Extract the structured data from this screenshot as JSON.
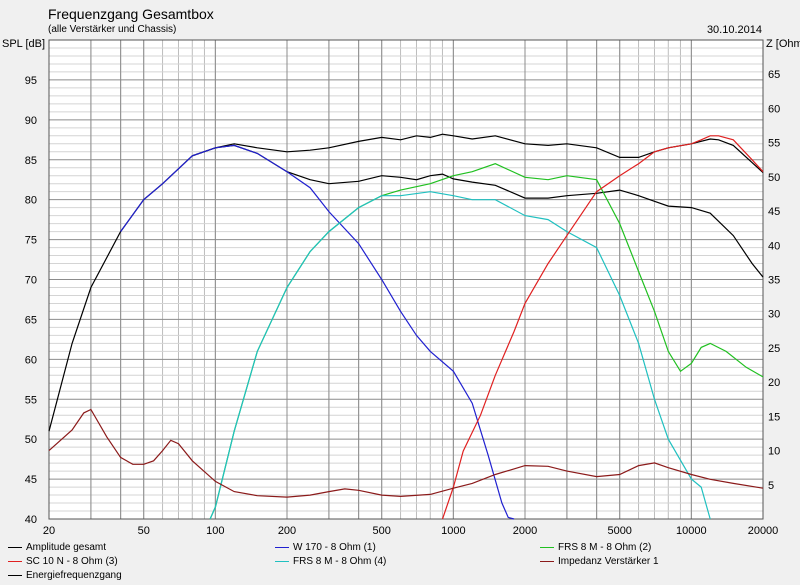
{
  "header": {
    "title": "Frequenzgang Gesamtbox",
    "subtitle": "(alle Verstärker und Chassis)",
    "date": "30.10.2014",
    "ylabel_left": "SPL [dB]",
    "ylabel_right": "Z [Ohm]"
  },
  "chart_data": {
    "type": "line",
    "x_scale": "log",
    "xlim": [
      20,
      20000
    ],
    "ylim": [
      40,
      100
    ],
    "y2lim": [
      0,
      70
    ],
    "x_ticks": [
      "20",
      "50",
      "100",
      "200",
      "500",
      "1000",
      "2000",
      "5000",
      "10000",
      "20000"
    ],
    "y_ticks": [
      "40",
      "45",
      "50",
      "55",
      "60",
      "65",
      "70",
      "75",
      "80",
      "85",
      "90",
      "95"
    ],
    "y2_ticks": [
      "5",
      "10",
      "15",
      "20",
      "25",
      "30",
      "35",
      "40",
      "45",
      "50",
      "55",
      "60",
      "65"
    ],
    "grid": true,
    "legend_position": "bottom",
    "colors": {
      "total": "#000000",
      "w170": "#2020d0",
      "frs2": "#20c020",
      "sc10": "#e02020",
      "frs4": "#20c0c0",
      "impedance": "#8b1a1a",
      "energy": "#000000",
      "grid": "#8c8c8c",
      "plot_bg": "#ffffff"
    },
    "series": [
      {
        "name": "Amplitude gesamt",
        "key": "total",
        "axis": "left",
        "x": [
          20,
          25,
          30,
          40,
          50,
          60,
          80,
          100,
          120,
          150,
          200,
          250,
          300,
          400,
          500,
          600,
          700,
          800,
          900,
          1000,
          1200,
          1500,
          2000,
          2500,
          3000,
          4000,
          5000,
          6000,
          7000,
          8000,
          10000,
          12000,
          13000,
          15000,
          20000
        ],
        "y": [
          51,
          62,
          69,
          76,
          80,
          82,
          85.5,
          86.5,
          87,
          86.5,
          86,
          86.2,
          86.5,
          87.3,
          87.8,
          87.5,
          88,
          87.8,
          88.2,
          88,
          87.6,
          88,
          87,
          86.8,
          87,
          86.5,
          85.3,
          85.3,
          86,
          86.5,
          87,
          87.6,
          87.5,
          86.8,
          83.4
        ]
      },
      {
        "name": "Energiefrequenzgang",
        "key": "energy",
        "axis": "left",
        "x": [
          80,
          100,
          120,
          150,
          200,
          250,
          300,
          400,
          500,
          600,
          700,
          800,
          900,
          1000,
          1200,
          1500,
          2000,
          2500,
          3000,
          4000,
          5000,
          6000,
          7000,
          8000,
          10000,
          12000,
          15000,
          18000,
          20000
        ],
        "y": [
          85.5,
          86.5,
          86.8,
          85.8,
          83.5,
          82.5,
          82,
          82.3,
          83,
          82.8,
          82.5,
          83,
          83.2,
          82.6,
          82.2,
          81.8,
          80.2,
          80.2,
          80.5,
          80.8,
          81.2,
          80.5,
          79.8,
          79.2,
          79,
          78.3,
          75.5,
          72,
          70.3
        ]
      },
      {
        "name": "W 170 - 8 Ohm (1)",
        "key": "w170",
        "axis": "left",
        "x": [
          40,
          50,
          60,
          80,
          100,
          120,
          150,
          200,
          250,
          300,
          400,
          500,
          600,
          700,
          800,
          1000,
          1200,
          1400,
          1600,
          1700,
          1800
        ],
        "y": [
          76,
          80,
          82,
          85.5,
          86.5,
          86.8,
          85.8,
          83.5,
          81.5,
          78.5,
          74.5,
          70,
          66,
          63,
          61,
          58.5,
          54.5,
          48,
          42,
          40.2,
          40
        ]
      },
      {
        "name": "FRS 8 M - 8 Ohm (2)",
        "key": "frs2",
        "axis": "left",
        "x": [
          95,
          100,
          120,
          150,
          200,
          250,
          300,
          400,
          500,
          600,
          800,
          1000,
          1200,
          1500,
          2000,
          2500,
          3000,
          4000,
          5000,
          6000,
          7000,
          8000,
          9000,
          10000,
          11000,
          12000,
          14000,
          17000,
          20000
        ],
        "y": [
          40,
          41.5,
          51,
          61,
          69,
          73.5,
          76,
          79,
          80.5,
          81.2,
          82,
          83,
          83.5,
          84.5,
          82.8,
          82.5,
          83,
          82.5,
          77,
          71,
          66,
          61,
          58.5,
          59.5,
          61.5,
          62,
          61,
          59,
          57.8
        ]
      },
      {
        "name": "FRS 8 M - 8 Ohm (4)",
        "key": "frs4",
        "axis": "left",
        "x": [
          95,
          100,
          120,
          150,
          200,
          250,
          300,
          400,
          500,
          600,
          800,
          1000,
          1200,
          1500,
          2000,
          2500,
          3000,
          4000,
          5000,
          6000,
          7000,
          8000,
          10000,
          11000,
          12000
        ],
        "y": [
          40,
          41.5,
          51,
          61,
          69,
          73.5,
          76,
          79,
          80.5,
          80.5,
          81,
          80.5,
          80,
          80,
          78,
          77.5,
          76,
          74,
          68,
          62,
          55,
          50,
          45,
          44,
          40
        ]
      },
      {
        "name": "SC 10 N - 8 Ohm (3)",
        "key": "sc10",
        "axis": "left",
        "x": [
          900,
          1000,
          1100,
          1300,
          1500,
          1800,
          2000,
          2500,
          3000,
          4000,
          5000,
          6000,
          7000,
          8000,
          10000,
          11000,
          12000,
          13000,
          15000,
          18000,
          20000
        ],
        "y": [
          40,
          44,
          48.5,
          53,
          58,
          63.5,
          67,
          72,
          75.5,
          81,
          83,
          84.5,
          86,
          86.5,
          87,
          87.5,
          88,
          88,
          87.5,
          85,
          83.5
        ]
      },
      {
        "name": "Impedanz Verstärker 1",
        "key": "impedance",
        "axis": "right",
        "x": [
          20,
          25,
          28,
          30,
          35,
          40,
          45,
          50,
          55,
          60,
          65,
          70,
          80,
          100,
          120,
          150,
          200,
          250,
          300,
          350,
          400,
          500,
          600,
          800,
          1000,
          1200,
          1500,
          2000,
          2500,
          3000,
          4000,
          5000,
          6000,
          7000,
          8000,
          10000,
          12000,
          15000,
          20000
        ],
        "y": [
          10,
          13,
          15.5,
          16,
          12,
          9,
          8,
          8,
          8.5,
          10,
          11.5,
          11,
          8.5,
          5.5,
          4,
          3.4,
          3.2,
          3.5,
          4,
          4.4,
          4.2,
          3.5,
          3.3,
          3.6,
          4.5,
          5.2,
          6.5,
          7.8,
          7.7,
          7,
          6.2,
          6.5,
          7.8,
          8.2,
          7.5,
          6.5,
          5.8,
          5.2,
          4.5
        ]
      }
    ]
  },
  "legend": [
    {
      "key": "total",
      "label": "Amplitude gesamt"
    },
    {
      "key": "sc10",
      "label": "SC 10 N - 8 Ohm (3)"
    },
    {
      "key": "energy",
      "label": "Energiefrequenzgang"
    },
    {
      "key": "w170",
      "label": "W 170 - 8 Ohm (1)"
    },
    {
      "key": "frs4",
      "label": "FRS 8 M - 8 Ohm (4)"
    },
    {
      "key": "frs2",
      "label": "FRS 8 M - 8 Ohm (2)"
    },
    {
      "key": "impedance",
      "label": "Impedanz Verstärker 1"
    }
  ]
}
